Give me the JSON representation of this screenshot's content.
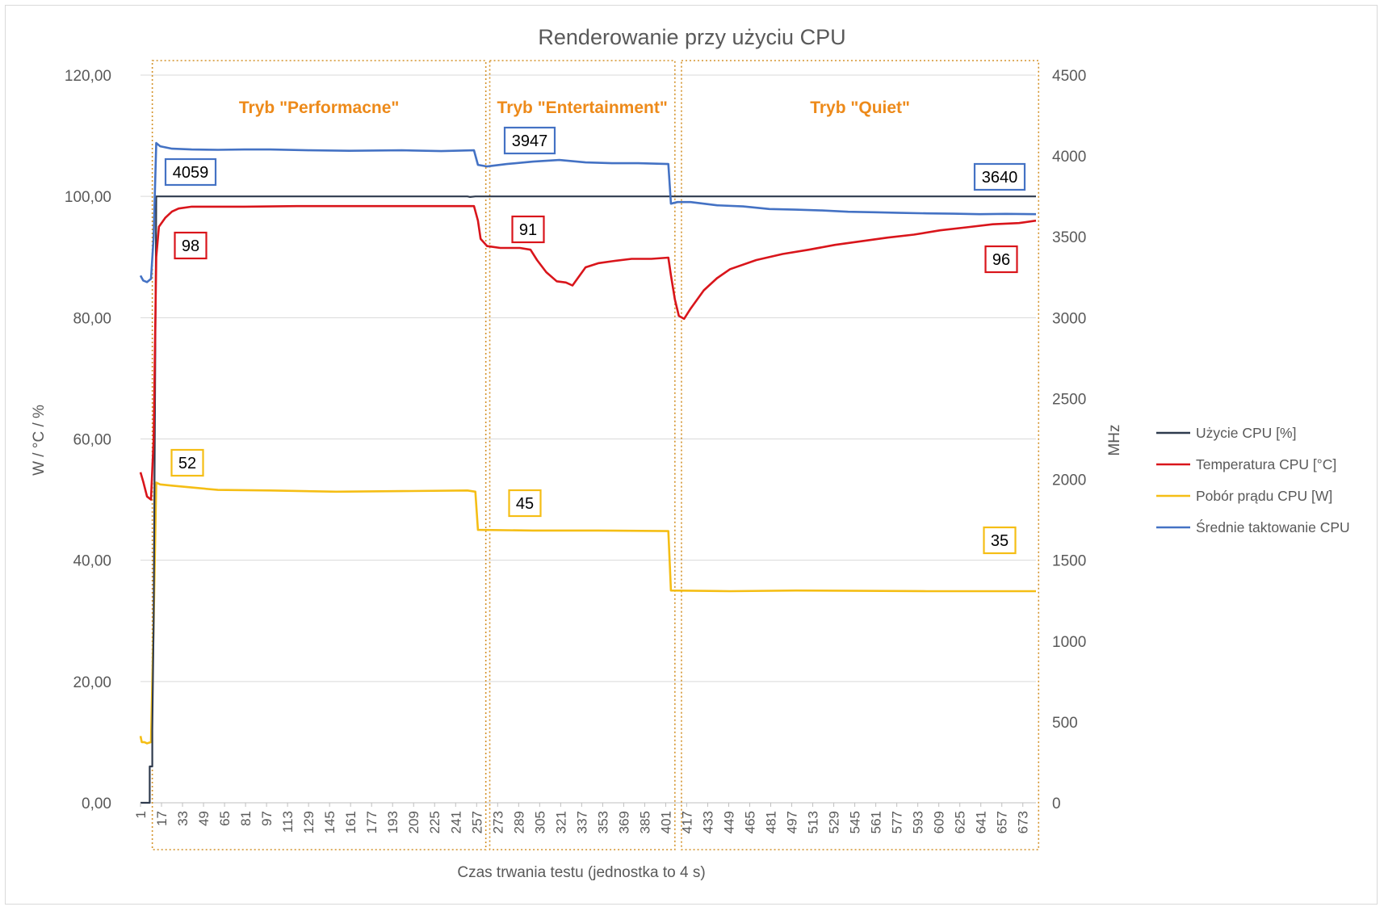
{
  "chart_data": {
    "type": "line",
    "title": "Renderowanie przy użyciu CPU",
    "xlabel": "Czas trwania testu (jednostka to 4 s)",
    "ylabel_left": "W / °C / %",
    "ylabel_right": "MHz",
    "ylim_left": [
      0,
      120
    ],
    "ylim_right": [
      0,
      4500
    ],
    "x_range": [
      1,
      683
    ],
    "x_ticks": [
      1,
      17,
      33,
      49,
      65,
      81,
      97,
      113,
      129,
      145,
      161,
      177,
      193,
      209,
      225,
      241,
      257,
      273,
      289,
      305,
      321,
      337,
      353,
      369,
      385,
      401,
      417,
      433,
      449,
      465,
      481,
      497,
      513,
      529,
      545,
      561,
      577,
      593,
      609,
      625,
      641,
      657,
      673
    ],
    "y_ticks_left": [
      "0,00",
      "20,00",
      "40,00",
      "60,00",
      "80,00",
      "100,00",
      "120,00"
    ],
    "y_ticks_right": [
      "0",
      "500",
      "1000",
      "1500",
      "2000",
      "2500",
      "3000",
      "3500",
      "4000",
      "4500"
    ],
    "grid": "horizontal",
    "legend_position": "right",
    "regions": [
      {
        "label": "Tryb \"Performacne\"",
        "x_start": 10,
        "x_end": 264
      },
      {
        "label": "Tryb \"Entertainment\"",
        "x_start": 267,
        "x_end": 408
      },
      {
        "label": "Tryb \"Quiet\"",
        "x_start": 413,
        "x_end": 685
      }
    ],
    "series": [
      {
        "name": "Użycie CPU [%]",
        "color": "#2f3b4e",
        "axis": "left",
        "points": [
          [
            1,
            0
          ],
          [
            8,
            0
          ],
          [
            8,
            6
          ],
          [
            10,
            6
          ],
          [
            10,
            12
          ],
          [
            11,
            30
          ],
          [
            13,
            100
          ],
          [
            250,
            100
          ],
          [
            252,
            99.9
          ],
          [
            256,
            100
          ],
          [
            683,
            100
          ]
        ]
      },
      {
        "name": "Temperatura CPU [°C]",
        "color": "#d9151b",
        "axis": "left",
        "points": [
          [
            1,
            54.5
          ],
          [
            3,
            53
          ],
          [
            6,
            50.5
          ],
          [
            9,
            50
          ],
          [
            11,
            60
          ],
          [
            13,
            90
          ],
          [
            15,
            95
          ],
          [
            20,
            96.5
          ],
          [
            25,
            97.5
          ],
          [
            30,
            98
          ],
          [
            40,
            98.3
          ],
          [
            60,
            98.3
          ],
          [
            80,
            98.3
          ],
          [
            120,
            98.4
          ],
          [
            160,
            98.4
          ],
          [
            200,
            98.4
          ],
          [
            255,
            98.4
          ],
          [
            258,
            96
          ],
          [
            260,
            93
          ],
          [
            265,
            91.8
          ],
          [
            275,
            91.5
          ],
          [
            290,
            91.5
          ],
          [
            298,
            91.2
          ],
          [
            303,
            89.5
          ],
          [
            310,
            87.5
          ],
          [
            318,
            86
          ],
          [
            325,
            85.8
          ],
          [
            330,
            85.3
          ],
          [
            335,
            86.8
          ],
          [
            340,
            88.3
          ],
          [
            350,
            89
          ],
          [
            360,
            89.3
          ],
          [
            375,
            89.7
          ],
          [
            390,
            89.7
          ],
          [
            403,
            89.9
          ],
          [
            405,
            87
          ],
          [
            408,
            83
          ],
          [
            411,
            80.3
          ],
          [
            415,
            79.8
          ],
          [
            420,
            81.5
          ],
          [
            430,
            84.5
          ],
          [
            440,
            86.5
          ],
          [
            450,
            88
          ],
          [
            470,
            89.5
          ],
          [
            490,
            90.5
          ],
          [
            510,
            91.2
          ],
          [
            530,
            92
          ],
          [
            550,
            92.6
          ],
          [
            570,
            93.2
          ],
          [
            590,
            93.7
          ],
          [
            610,
            94.4
          ],
          [
            630,
            94.9
          ],
          [
            650,
            95.4
          ],
          [
            670,
            95.6
          ],
          [
            683,
            96
          ]
        ]
      },
      {
        "name": "Pobór prądu CPU [W]",
        "color": "#f5be15",
        "axis": "left",
        "points": [
          [
            1,
            11
          ],
          [
            2,
            10
          ],
          [
            4,
            10
          ],
          [
            6,
            9.8
          ],
          [
            9,
            10
          ],
          [
            11,
            30
          ],
          [
            13,
            52.8
          ],
          [
            16,
            52.5
          ],
          [
            25,
            52.3
          ],
          [
            40,
            52
          ],
          [
            60,
            51.6
          ],
          [
            100,
            51.5
          ],
          [
            150,
            51.3
          ],
          [
            200,
            51.4
          ],
          [
            250,
            51.5
          ],
          [
            256,
            51.3
          ],
          [
            258,
            45
          ],
          [
            300,
            44.9
          ],
          [
            350,
            44.9
          ],
          [
            403,
            44.8
          ],
          [
            405,
            35
          ],
          [
            450,
            34.9
          ],
          [
            500,
            35
          ],
          [
            600,
            34.9
          ],
          [
            683,
            34.9
          ]
        ]
      },
      {
        "name": "Średnie taktowanie CPU",
        "color": "#4472c4",
        "axis": "right",
        "points": [
          [
            1,
            3260
          ],
          [
            3,
            3230
          ],
          [
            6,
            3220
          ],
          [
            9,
            3240
          ],
          [
            11,
            3500
          ],
          [
            13,
            4080
          ],
          [
            16,
            4060
          ],
          [
            25,
            4045
          ],
          [
            40,
            4040
          ],
          [
            60,
            4038
          ],
          [
            80,
            4040
          ],
          [
            100,
            4040
          ],
          [
            130,
            4035
          ],
          [
            160,
            4032
          ],
          [
            200,
            4035
          ],
          [
            230,
            4030
          ],
          [
            255,
            4035
          ],
          [
            258,
            3945
          ],
          [
            265,
            3935
          ],
          [
            280,
            3950
          ],
          [
            300,
            3965
          ],
          [
            320,
            3975
          ],
          [
            340,
            3960
          ],
          [
            360,
            3955
          ],
          [
            380,
            3955
          ],
          [
            403,
            3950
          ],
          [
            405,
            3705
          ],
          [
            410,
            3715
          ],
          [
            420,
            3715
          ],
          [
            440,
            3695
          ],
          [
            460,
            3688
          ],
          [
            480,
            3672
          ],
          [
            500,
            3668
          ],
          [
            520,
            3663
          ],
          [
            540,
            3655
          ],
          [
            560,
            3652
          ],
          [
            580,
            3648
          ],
          [
            600,
            3645
          ],
          [
            620,
            3643
          ],
          [
            640,
            3640
          ],
          [
            660,
            3642
          ],
          [
            683,
            3640
          ]
        ]
      }
    ],
    "annotations": [
      {
        "text": "4059",
        "series": "Średnie taktowanie CPU",
        "color": "#4472c4"
      },
      {
        "text": "3947",
        "series": "Średnie taktowanie CPU",
        "color": "#4472c4"
      },
      {
        "text": "3640",
        "series": "Średnie taktowanie CPU",
        "color": "#4472c4"
      },
      {
        "text": "98",
        "series": "Temperatura CPU [°C]",
        "color": "#d9151b"
      },
      {
        "text": "91",
        "series": "Temperatura CPU [°C]",
        "color": "#d9151b"
      },
      {
        "text": "96",
        "series": "Temperatura CPU [°C]",
        "color": "#d9151b"
      },
      {
        "text": "52",
        "series": "Pobór prądu CPU [W]",
        "color": "#f5be15"
      },
      {
        "text": "45",
        "series": "Pobór prądu CPU [W]",
        "color": "#f5be15"
      },
      {
        "text": "35",
        "series": "Pobór prądu CPU [W]",
        "color": "#f5be15"
      }
    ]
  }
}
